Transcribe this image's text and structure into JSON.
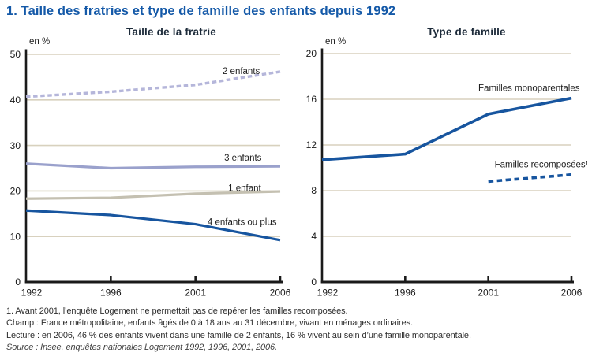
{
  "figure": {
    "title": "1. Taille des fratries et type de famille des enfants depuis 1992"
  },
  "colors": {
    "title_blue": "#1459a8",
    "header_text": "#1d2b3a",
    "grid": "#d8d1be",
    "axis": "#1a1a1a",
    "dark_blue": "#17559f",
    "lavender_dashed": "#b5b6da",
    "periwinkle": "#9aa1cc",
    "taupe": "#c4c0b1"
  },
  "chart_data": [
    {
      "type": "line",
      "title": "Taille de la fratrie",
      "unit_label": "en %",
      "categories": [
        "1992",
        "1996",
        "2001",
        "2006"
      ],
      "ylim": [
        0,
        50
      ],
      "yticks": [
        0,
        10,
        20,
        30,
        40,
        50
      ],
      "grid": true,
      "legend_position": "inline-labels",
      "series": [
        {
          "name": "2 enfants",
          "values": [
            40.7,
            41.8,
            43.3,
            46.2
          ],
          "style": "dashed",
          "color": "#b5b6da"
        },
        {
          "name": "3 enfants",
          "values": [
            26.0,
            25.0,
            25.3,
            25.4
          ],
          "style": "solid",
          "color": "#9aa1cc"
        },
        {
          "name": "1 enfant",
          "values": [
            18.3,
            18.5,
            19.4,
            19.9
          ],
          "style": "solid",
          "color": "#c4c0b1"
        },
        {
          "name": "4 enfants ou plus",
          "values": [
            15.7,
            14.7,
            12.7,
            9.2
          ],
          "style": "solid",
          "color": "#17559f"
        }
      ],
      "annotations": [
        {
          "text": "2 enfants",
          "x": 2.54,
          "y": 46.4
        },
        {
          "text": "3 enfants",
          "x": 2.56,
          "y": 27.3
        },
        {
          "text": "1 enfant",
          "x": 2.58,
          "y": 20.7
        },
        {
          "text": "4 enfants ou plus",
          "x": 2.55,
          "y": 13.2
        }
      ]
    },
    {
      "type": "line",
      "title": "Type de famille",
      "unit_label": "en %",
      "categories": [
        "1992",
        "1996",
        "2001",
        "2006"
      ],
      "ylim": [
        0,
        20
      ],
      "yticks": [
        0,
        4,
        8,
        12,
        16,
        20
      ],
      "grid": true,
      "legend_position": "inline-labels",
      "series": [
        {
          "name": "Familles monoparentales",
          "values": [
            10.7,
            11.2,
            14.7,
            16.1
          ],
          "style": "solid",
          "color": "#17559f"
        },
        {
          "name": "Familles recomposées",
          "values": [
            null,
            null,
            8.8,
            9.4
          ],
          "style": "dashed",
          "color": "#17559f"
        }
      ],
      "annotations": [
        {
          "text": "Familles monoparentales",
          "x": 2.49,
          "y": 17.0
        },
        {
          "text": "Familles recomposées¹",
          "x": 2.64,
          "y": 10.3
        }
      ]
    }
  ],
  "notes": {
    "footnote": "1. Avant 2001, l’enquête Logement ne permettait pas de repérer les familles recomposées.",
    "champ": "Champ : France métropolitaine, enfants âgés de 0 à 18 ans au 31 décembre, vivant en ménages ordinaires.",
    "lecture": "Lecture : en 2006, 46 % des enfants vivent dans une famille de 2 enfants, 16 % vivent au sein d’une famille monoparentale.",
    "source": "Source : Insee, enquêtes nationales Logement 1992, 1996, 2001, 2006."
  }
}
